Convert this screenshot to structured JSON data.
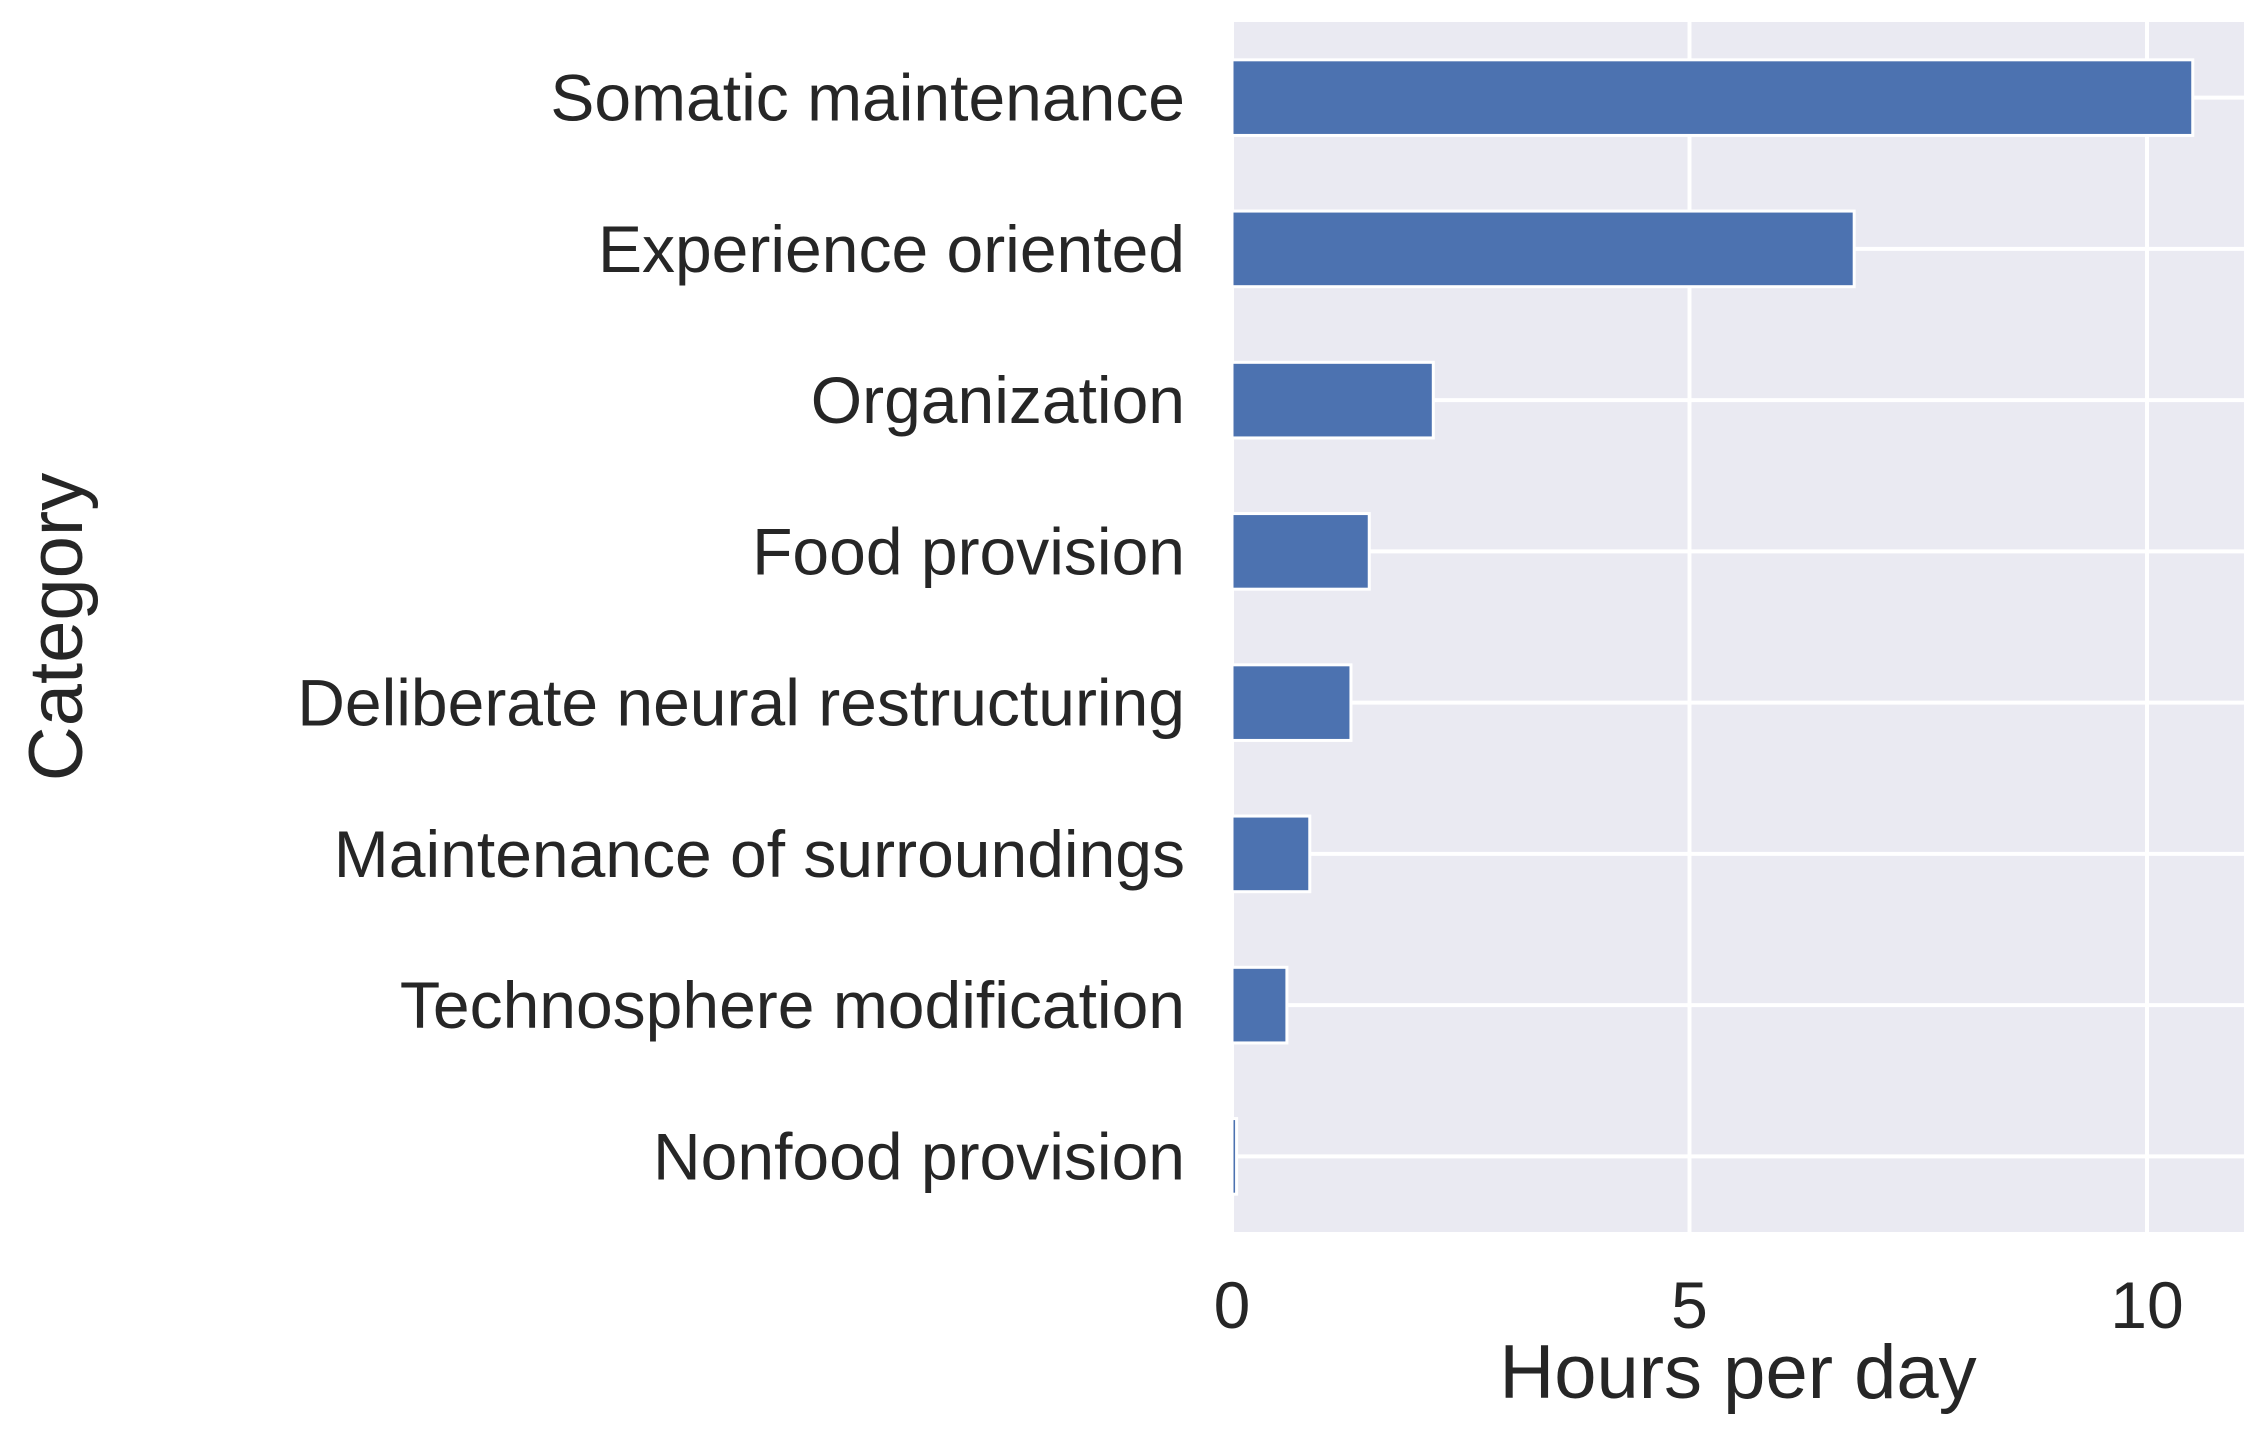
{
  "chart_data": {
    "type": "bar",
    "orientation": "horizontal",
    "title": "",
    "xlabel": "Hours per day",
    "ylabel": "Category",
    "categories": [
      "Somatic maintenance",
      "Experience oriented",
      "Organization",
      "Food provision",
      "Deliberate neural restructuring",
      "Maintenance of surroundings",
      "Technosphere modification",
      "Nonfood provision"
    ],
    "values": [
      10.5,
      6.8,
      2.2,
      1.5,
      1.3,
      0.85,
      0.6,
      0.05
    ],
    "xlim": [
      0,
      11
    ],
    "xticks": [
      0,
      5,
      10
    ],
    "grid": true,
    "colors": {
      "bar": "#4c72b0",
      "plot_background": "#eaeaf2",
      "grid": "#ffffff",
      "text": "#262626"
    }
  }
}
